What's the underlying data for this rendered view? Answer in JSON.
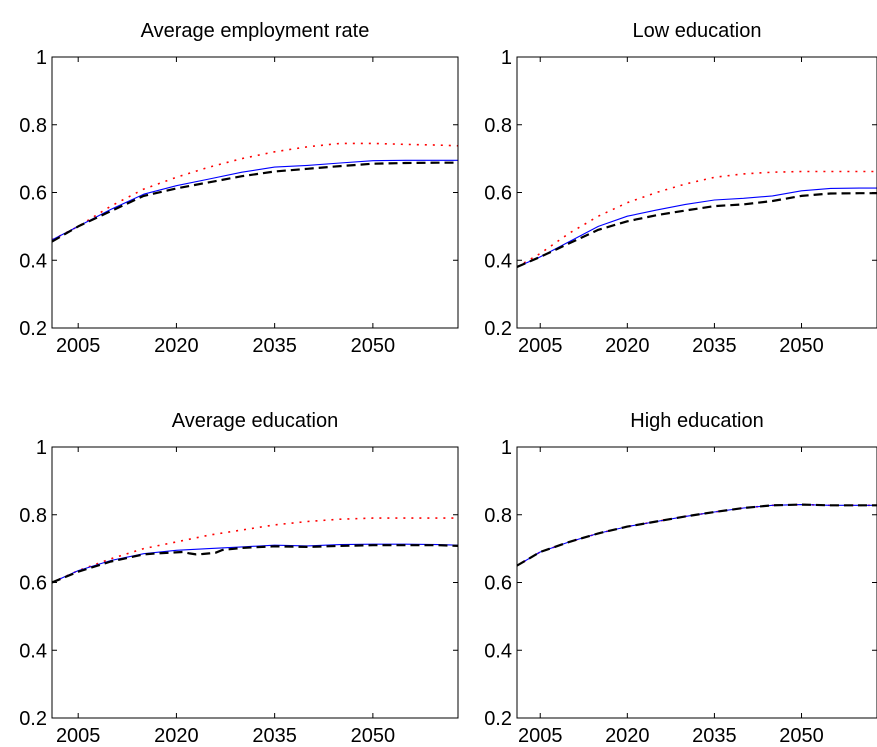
{
  "chart_data": [
    {
      "type": "line",
      "title": "Average employment rate",
      "xlabel": "",
      "ylabel": "",
      "xlim": [
        2001,
        2063
      ],
      "ylim": [
        0.2,
        1
      ],
      "xticks": [
        2005,
        2020,
        2035,
        2050
      ],
      "xtick_labels": [
        "2005",
        "2020",
        "2035",
        "2050"
      ],
      "yticks": [
        0.2,
        0.4,
        0.6,
        0.8,
        1
      ],
      "ytick_labels": [
        "0.2",
        "0.4",
        "0.6",
        "0.8",
        "1"
      ],
      "grid": false,
      "series": [
        {
          "color": "#ff0000",
          "style": "dotted",
          "x": [
            2001,
            2005,
            2010,
            2015,
            2020,
            2025,
            2030,
            2035,
            2040,
            2045,
            2050,
            2055,
            2060,
            2063
          ],
          "y": [
            0.46,
            0.5,
            0.56,
            0.61,
            0.645,
            0.675,
            0.7,
            0.72,
            0.735,
            0.745,
            0.745,
            0.742,
            0.74,
            0.738
          ]
        },
        {
          "color": "#0000ff",
          "style": "solid",
          "x": [
            2001,
            2005,
            2010,
            2015,
            2020,
            2025,
            2030,
            2035,
            2040,
            2045,
            2050,
            2055,
            2060,
            2063
          ],
          "y": [
            0.46,
            0.5,
            0.55,
            0.595,
            0.62,
            0.64,
            0.66,
            0.675,
            0.68,
            0.687,
            0.694,
            0.695,
            0.695,
            0.695
          ]
        },
        {
          "color": "#000000",
          "style": "dashed",
          "x": [
            2001,
            2005,
            2010,
            2015,
            2020,
            2025,
            2030,
            2035,
            2040,
            2045,
            2050,
            2055,
            2060,
            2063
          ],
          "y": [
            0.455,
            0.5,
            0.545,
            0.59,
            0.612,
            0.63,
            0.648,
            0.662,
            0.67,
            0.678,
            0.685,
            0.687,
            0.688,
            0.688
          ]
        }
      ]
    },
    {
      "type": "line",
      "title": "Low education",
      "xlabel": "",
      "ylabel": "",
      "xlim": [
        2001,
        2063
      ],
      "ylim": [
        0.2,
        1
      ],
      "xticks": [
        2005,
        2020,
        2035,
        2050
      ],
      "xtick_labels": [
        "2005",
        "2020",
        "2035",
        "2050"
      ],
      "yticks": [
        0.2,
        0.4,
        0.6,
        0.8,
        1
      ],
      "ytick_labels": [
        "0.2",
        "0.4",
        "0.6",
        "0.8",
        "1"
      ],
      "grid": false,
      "series": [
        {
          "color": "#ff0000",
          "style": "dotted",
          "x": [
            2001,
            2005,
            2010,
            2015,
            2020,
            2025,
            2030,
            2035,
            2040,
            2045,
            2050,
            2055,
            2060,
            2063
          ],
          "y": [
            0.38,
            0.42,
            0.48,
            0.53,
            0.57,
            0.6,
            0.625,
            0.645,
            0.655,
            0.66,
            0.662,
            0.662,
            0.662,
            0.662
          ]
        },
        {
          "color": "#0000ff",
          "style": "solid",
          "x": [
            2001,
            2005,
            2010,
            2015,
            2020,
            2025,
            2030,
            2035,
            2040,
            2045,
            2050,
            2055,
            2060,
            2063
          ],
          "y": [
            0.38,
            0.41,
            0.455,
            0.5,
            0.53,
            0.548,
            0.565,
            0.578,
            0.583,
            0.59,
            0.605,
            0.612,
            0.613,
            0.613
          ]
        },
        {
          "color": "#000000",
          "style": "dashed",
          "x": [
            2001,
            2005,
            2010,
            2015,
            2020,
            2025,
            2030,
            2035,
            2040,
            2045,
            2050,
            2055,
            2060,
            2063
          ],
          "y": [
            0.38,
            0.41,
            0.45,
            0.49,
            0.515,
            0.533,
            0.547,
            0.56,
            0.565,
            0.575,
            0.59,
            0.597,
            0.598,
            0.598
          ]
        }
      ]
    },
    {
      "type": "line",
      "title": "Average education",
      "xlabel": "",
      "ylabel": "",
      "xlim": [
        2001,
        2063
      ],
      "ylim": [
        0.2,
        1
      ],
      "xticks": [
        2005,
        2020,
        2035,
        2050
      ],
      "xtick_labels": [
        "2005",
        "2020",
        "2035",
        "2050"
      ],
      "yticks": [
        0.2,
        0.4,
        0.6,
        0.8,
        1
      ],
      "ytick_labels": [
        "0.2",
        "0.4",
        "0.6",
        "0.8",
        "1"
      ],
      "grid": false,
      "series": [
        {
          "color": "#ff0000",
          "style": "dotted",
          "x": [
            2001,
            2005,
            2010,
            2015,
            2020,
            2025,
            2030,
            2035,
            2040,
            2045,
            2050,
            2055,
            2060,
            2063
          ],
          "y": [
            0.6,
            0.635,
            0.67,
            0.7,
            0.72,
            0.74,
            0.755,
            0.77,
            0.78,
            0.787,
            0.79,
            0.79,
            0.79,
            0.79
          ]
        },
        {
          "color": "#0000ff",
          "style": "solid",
          "x": [
            2001,
            2005,
            2010,
            2015,
            2020,
            2025,
            2030,
            2035,
            2040,
            2045,
            2050,
            2055,
            2060,
            2063
          ],
          "y": [
            0.6,
            0.635,
            0.665,
            0.685,
            0.695,
            0.7,
            0.705,
            0.71,
            0.708,
            0.712,
            0.713,
            0.713,
            0.712,
            0.71
          ]
        },
        {
          "color": "#000000",
          "style": "dashed",
          "x": [
            2001,
            2005,
            2010,
            2015,
            2017,
            2019,
            2021,
            2022,
            2023,
            2024,
            2025,
            2026,
            2027,
            2030,
            2035,
            2040,
            2045,
            2050,
            2055,
            2060,
            2063
          ],
          "y": [
            0.6,
            0.632,
            0.662,
            0.683,
            0.686,
            0.688,
            0.69,
            0.686,
            0.683,
            0.684,
            0.686,
            0.688,
            0.696,
            0.702,
            0.707,
            0.705,
            0.708,
            0.71,
            0.71,
            0.71,
            0.708
          ]
        }
      ]
    },
    {
      "type": "line",
      "title": "High education",
      "xlabel": "",
      "ylabel": "",
      "xlim": [
        2001,
        2063
      ],
      "ylim": [
        0.2,
        1
      ],
      "xticks": [
        2005,
        2020,
        2035,
        2050
      ],
      "xtick_labels": [
        "2005",
        "2020",
        "2035",
        "2050"
      ],
      "yticks": [
        0.2,
        0.4,
        0.6,
        0.8,
        1
      ],
      "ytick_labels": [
        "0.2",
        "0.4",
        "0.6",
        "0.8",
        "1"
      ],
      "grid": false,
      "series": [
        {
          "color": "#ff0000",
          "style": "dotted",
          "x": [
            2001,
            2005,
            2010,
            2015,
            2020,
            2025,
            2030,
            2035,
            2040,
            2045,
            2050,
            2055,
            2060,
            2063
          ],
          "y": [
            0.65,
            0.69,
            0.72,
            0.745,
            0.765,
            0.78,
            0.795,
            0.808,
            0.82,
            0.828,
            0.83,
            0.828,
            0.828,
            0.828
          ]
        },
        {
          "color": "#0000ff",
          "style": "solid",
          "x": [
            2001,
            2005,
            2010,
            2015,
            2020,
            2025,
            2030,
            2035,
            2040,
            2045,
            2050,
            2055,
            2060,
            2063
          ],
          "y": [
            0.65,
            0.69,
            0.72,
            0.745,
            0.765,
            0.78,
            0.795,
            0.808,
            0.82,
            0.828,
            0.83,
            0.828,
            0.828,
            0.828
          ]
        },
        {
          "color": "#000000",
          "style": "dashed",
          "x": [
            2001,
            2005,
            2010,
            2015,
            2020,
            2025,
            2030,
            2035,
            2040,
            2045,
            2050,
            2055,
            2060,
            2063
          ],
          "y": [
            0.65,
            0.69,
            0.72,
            0.745,
            0.765,
            0.78,
            0.795,
            0.808,
            0.82,
            0.828,
            0.83,
            0.828,
            0.828,
            0.828
          ]
        }
      ]
    }
  ]
}
